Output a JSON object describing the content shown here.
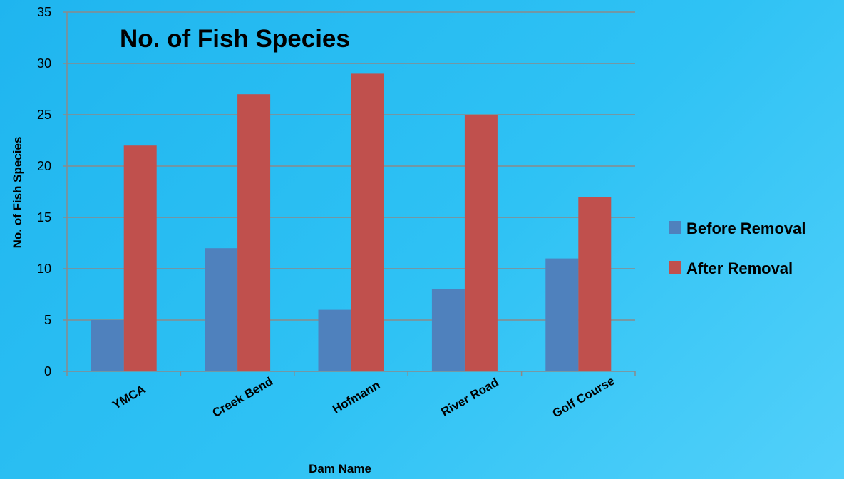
{
  "chart_data": {
    "type": "bar",
    "title": "No. of Fish Species",
    "xlabel": "Dam Name",
    "ylabel": "No. of Fish Species",
    "categories": [
      "YMCA",
      "Creek Bend",
      "Hofmann",
      "River Road",
      "Golf Course"
    ],
    "series": [
      {
        "name": "Before Removal",
        "color": "#4f81bd",
        "values": [
          5,
          12,
          6,
          8,
          11
        ]
      },
      {
        "name": "After Removal",
        "color": "#c0504d",
        "values": [
          22,
          27,
          29,
          25,
          17
        ]
      }
    ],
    "ylim": [
      0,
      35
    ],
    "yticks": [
      0,
      5,
      10,
      15,
      20,
      25,
      30,
      35
    ],
    "grid": true,
    "legend_position": "right"
  }
}
